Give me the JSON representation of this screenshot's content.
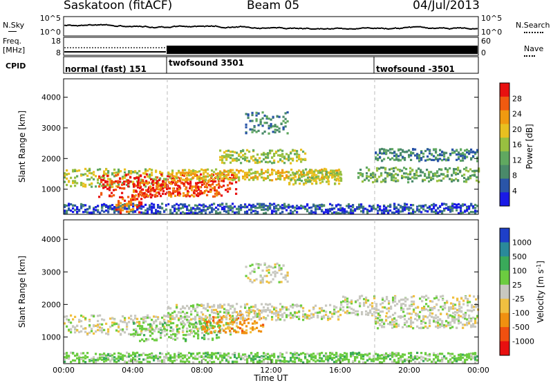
{
  "header": {
    "title_left": "Saskatoon (fitACF)",
    "title_mid": "Beam 05",
    "title_right": "04/Jul/2013"
  },
  "top_panels": {
    "nsky_label": "N.Sky",
    "nsky_ticks": [
      "10^5",
      "10^0"
    ],
    "nsearch_label": "N.Search",
    "nsearch_ticks": [
      "10^5",
      "10^0"
    ],
    "freq_label_1": "Freq.",
    "freq_label_2": "[MHz]",
    "freq_ticks": [
      "18",
      "8"
    ],
    "nave_label": "Nave",
    "nave_ticks": [
      "60",
      "0"
    ],
    "cpid_label": "CPID"
  },
  "cpid_modes": [
    {
      "label": "normal (fast) 151",
      "start_hour": 0
    },
    {
      "label": "twofsound 3501",
      "start_hour": 6
    },
    {
      "label": "twofsound -3501",
      "start_hour": 18
    }
  ],
  "chart_data": [
    {
      "type": "heatmap",
      "name": "power",
      "ylabel": "Slant Range [km]",
      "yticks": [
        1000,
        2000,
        3000,
        4000
      ],
      "ylim": [
        180,
        4600
      ],
      "xlim": [
        0,
        24
      ],
      "colorbar": {
        "label": "Power [dB]",
        "ticks": [
          4,
          8,
          12,
          16,
          20,
          24,
          28
        ],
        "range": [
          0,
          32
        ],
        "colors": [
          "#1a1ae6",
          "#2a55a8",
          "#4a8a6a",
          "#60a860",
          "#98c040",
          "#e8c020",
          "#f09a10",
          "#f05a10",
          "#e81010"
        ]
      },
      "dashed_lines_at_hours": [
        6,
        18
      ]
    },
    {
      "type": "heatmap",
      "name": "velocity",
      "ylabel": "Slant Range [km]",
      "yticks": [
        1000,
        2000,
        3000,
        4000
      ],
      "ylim": [
        180,
        4600
      ],
      "xlim": [
        0,
        24
      ],
      "colorbar": {
        "label": "Velocity [m s^-1]",
        "ticks": [
          "1000",
          "500",
          "100",
          "25",
          "-25",
          "-100",
          "-500",
          "-1000"
        ],
        "colors": [
          "#1e3fc8",
          "#2a8a9a",
          "#3aaa5a",
          "#6ccc40",
          "#c8c8c0",
          "#f0c040",
          "#f09010",
          "#f05010",
          "#e81010"
        ]
      },
      "dashed_lines_at_hours": [
        6,
        18
      ],
      "xlabel": "Time UT",
      "xticks": [
        "00:00",
        "04:00",
        "08:00",
        "12:00",
        "16:00",
        "20:00",
        "00:00"
      ]
    }
  ]
}
